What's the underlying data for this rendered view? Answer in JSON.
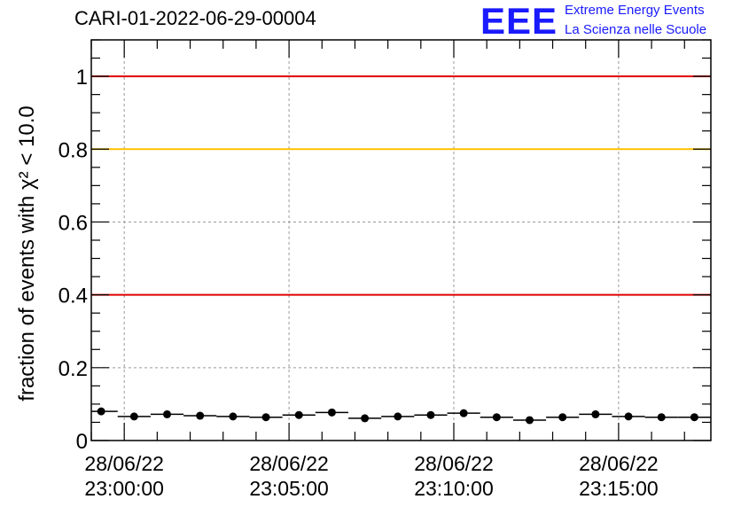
{
  "header": {
    "run_title": "CARI-01-2022-06-29-00004",
    "logo_text": "EEE",
    "brand_line1": "Extreme Energy Events",
    "brand_line2": "La Scienza nelle Scuole"
  },
  "chart_data": {
    "type": "scatter",
    "title": "CARI-01-2022-06-29-00004",
    "ylabel": "fraction of events with χ² < 10.0",
    "xlabel": "",
    "ylim": [
      0,
      1.1
    ],
    "yticks": [
      0,
      0.2,
      0.4,
      0.6,
      0.8,
      1
    ],
    "ytick_labels": [
      "0",
      "0.2",
      "0.4",
      "0.6",
      "0.8",
      "1"
    ],
    "xlim_minutes": [
      -1.0,
      17.8
    ],
    "xticks": [
      {
        "minute": 0,
        "line1": "28/06/22",
        "line2": "23:00:00"
      },
      {
        "minute": 5,
        "line1": "28/06/22",
        "line2": "23:05:00"
      },
      {
        "minute": 10,
        "line1": "28/06/22",
        "line2": "23:10:00"
      },
      {
        "minute": 15,
        "line1": "28/06/22",
        "line2": "23:15:00"
      }
    ],
    "grid": true,
    "bin_width_minutes": 1.0,
    "series": [
      {
        "x_minutes": [
          -0.7,
          0.3,
          1.3,
          2.3,
          3.3,
          4.3,
          5.3,
          6.3,
          7.3,
          8.3,
          9.3,
          10.3,
          11.3,
          12.3,
          13.3,
          14.3,
          15.3,
          16.3,
          17.3
        ],
        "values": [
          0.08,
          0.066,
          0.072,
          0.068,
          0.066,
          0.064,
          0.07,
          0.077,
          0.061,
          0.066,
          0.07,
          0.075,
          0.064,
          0.056,
          0.064,
          0.072,
          0.066,
          0.064,
          0.064
        ]
      }
    ],
    "reference_lines": [
      {
        "y": 1.0,
        "color": "#e00000"
      },
      {
        "y": 0.8,
        "color": "#ffc000"
      },
      {
        "y": 0.4,
        "color": "#e00000"
      }
    ]
  }
}
